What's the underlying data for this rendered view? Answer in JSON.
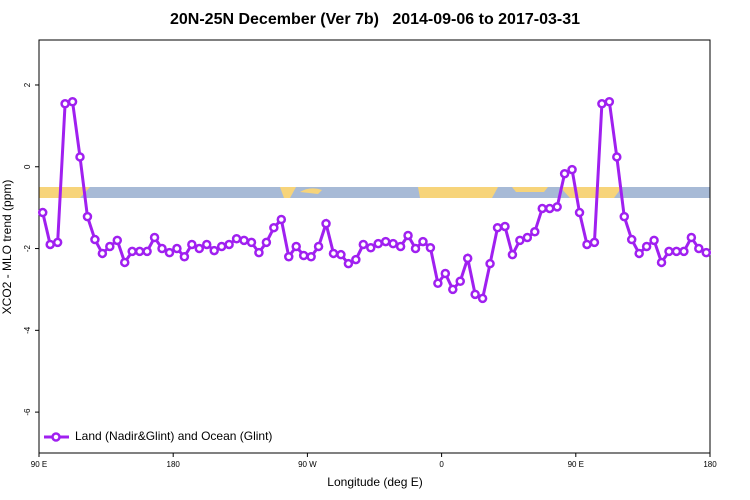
{
  "chart_data": {
    "type": "line",
    "title": "20N-25N December (Ver 7b)   2014-09-06 to 2017-03-31",
    "x_label": "Longitude (deg E)",
    "y_label": "XCO2 - MLO trend (ppm)",
    "xlim": [
      90,
      540
    ],
    "ylim": [
      -7,
      3.1
    ],
    "xticks": [
      {
        "value": 90,
        "label": "90 E"
      },
      {
        "value": 180,
        "label": "180"
      },
      {
        "value": 270,
        "label": "90 W"
      },
      {
        "value": 360,
        "label": "0"
      },
      {
        "value": 450,
        "label": "90 E"
      },
      {
        "value": 540,
        "label": "180"
      }
    ],
    "yticks": [
      -6,
      -4,
      -2,
      0,
      2
    ],
    "legend": "bottom-left",
    "x": [
      92.5,
      97.5,
      102.5,
      107.5,
      112.5,
      117.5,
      122.5,
      127.5,
      132.5,
      137.5,
      142.5,
      147.5,
      152.5,
      157.5,
      162.5,
      167.5,
      172.5,
      177.5,
      182.5,
      187.5,
      192.5,
      197.5,
      202.5,
      207.5,
      212.5,
      217.5,
      222.5,
      227.5,
      232.5,
      237.5,
      242.5,
      247.5,
      252.5,
      257.5,
      262.5,
      267.5,
      272.5,
      277.5,
      282.5,
      287.5,
      292.5,
      297.5,
      302.5,
      307.5,
      312.5,
      317.5,
      322.5,
      327.5,
      332.5,
      337.5,
      342.5,
      347.5,
      352.5,
      357.5,
      362.5,
      367.5,
      372.5,
      377.5,
      382.5,
      387.5,
      392.5,
      397.5,
      402.5,
      407.5,
      412.5,
      417.5,
      422.5,
      427.5,
      432.5,
      437.5,
      442.5,
      447.5,
      452.5,
      457.5,
      462.5,
      467.5,
      472.5,
      477.5,
      482.5,
      487.5,
      492.5,
      497.5,
      502.5,
      507.5,
      512.5,
      517.5,
      522.5,
      527.5,
      532.5,
      537.5
    ],
    "series": [
      {
        "name": "Land (Nadir&Glint) and Ocean (Glint)",
        "color": "#a020f0",
        "values": [
          -1.12,
          -1.9,
          -1.85,
          1.54,
          1.59,
          0.24,
          -1.22,
          -1.78,
          -2.12,
          -1.95,
          -1.8,
          -2.34,
          -2.07,
          -2.07,
          -2.07,
          -1.73,
          -2.0,
          -2.1,
          -2.0,
          -2.2,
          -1.9,
          -2.0,
          -1.9,
          -2.05,
          -1.95,
          -1.9,
          -1.76,
          -1.8,
          -1.85,
          -2.1,
          -1.85,
          -1.49,
          -1.29,
          -2.2,
          -1.95,
          -2.17,
          -2.2,
          -1.95,
          -1.39,
          -2.12,
          -2.15,
          -2.37,
          -2.27,
          -1.9,
          -1.98,
          -1.88,
          -1.83,
          -1.88,
          -1.95,
          -1.68,
          -2.0,
          -1.83,
          -1.98,
          -2.85,
          -2.61,
          -3.0,
          -2.8,
          -2.24,
          -3.12,
          -3.22,
          -2.37,
          -1.49,
          -1.46,
          -2.15,
          -1.8,
          -1.73,
          -1.59,
          -1.02,
          -1.02,
          -0.98,
          -0.17,
          -0.07,
          -1.12,
          -1.9,
          -1.85,
          1.54,
          1.59,
          0.24,
          -1.22,
          -1.78,
          -2.12,
          -1.95,
          -1.8,
          -2.34,
          -2.07,
          -2.07,
          -2.07,
          -1.73,
          -2.0,
          -2.1
        ]
      }
    ]
  }
}
